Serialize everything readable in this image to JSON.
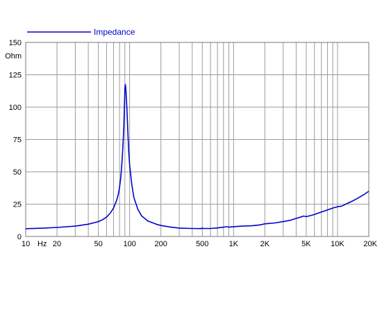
{
  "chart_data": {
    "type": "line",
    "title": "",
    "xlabel": "Hz",
    "ylabel": "Ohm",
    "xscale": "log",
    "xlim": [
      10,
      20000
    ],
    "ylim": [
      0,
      150
    ],
    "grid": true,
    "legend_position": "top-left",
    "x_tick_values": [
      10,
      20,
      50,
      100,
      200,
      500,
      1000,
      2000,
      5000,
      10000,
      20000
    ],
    "x_tick_labels": [
      "10",
      "20",
      "50",
      "100",
      "200",
      "500",
      "1K",
      "2K",
      "5K",
      "10K",
      "20K"
    ],
    "y_tick_values": [
      0,
      25,
      50,
      75,
      100,
      125,
      150
    ],
    "y_tick_labels": [
      "0",
      "25",
      "50",
      "75",
      "100",
      "125",
      "150"
    ],
    "series": [
      {
        "name": "Impedance",
        "color": "#0000cc",
        "x": [
          10,
          15,
          20,
          30,
          40,
          50,
          55,
          60,
          65,
          70,
          75,
          78,
          80,
          82,
          84,
          86,
          88,
          89,
          90,
          91,
          92,
          94,
          96,
          98,
          100,
          105,
          110,
          120,
          130,
          150,
          180,
          200,
          250,
          300,
          400,
          490,
          500,
          510,
          600,
          700,
          800,
          850,
          900,
          1000,
          1200,
          1500,
          1800,
          2000,
          2500,
          3000,
          3500,
          4000,
          4500,
          4700,
          5000,
          6000,
          7000,
          8000,
          9000,
          10000,
          11000,
          12000,
          14000,
          16000,
          18000,
          20000
        ],
        "y": [
          6,
          6.5,
          7,
          8,
          9.5,
          11.5,
          13,
          15,
          18,
          22,
          28,
          33,
          38,
          45,
          55,
          68,
          85,
          100,
          114,
          117.5,
          114,
          100,
          82,
          66,
          55,
          40,
          30,
          21,
          16,
          12,
          9.5,
          8.5,
          7.2,
          6.5,
          6.2,
          6.1,
          6.6,
          6.2,
          6.2,
          6.6,
          7.2,
          7.6,
          7.2,
          7.6,
          8.0,
          8.3,
          9.0,
          9.8,
          10.5,
          11.5,
          12.5,
          14.0,
          15.2,
          15.8,
          15.3,
          17.0,
          19.0,
          20.5,
          22.0,
          23.0,
          23.5,
          25.0,
          27.5,
          30.0,
          32.5,
          35.0
        ]
      }
    ]
  }
}
